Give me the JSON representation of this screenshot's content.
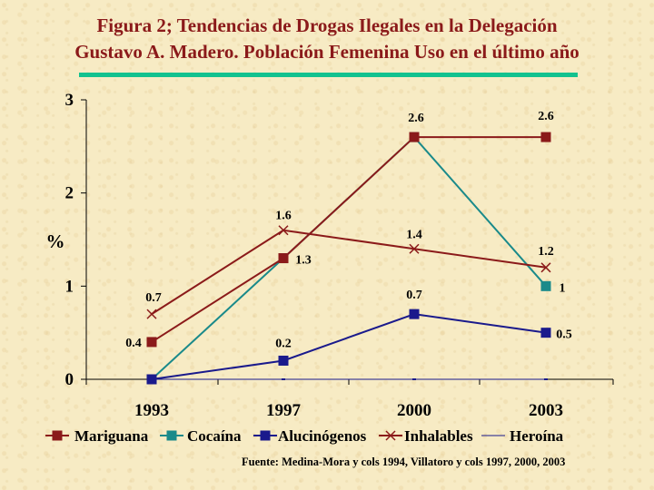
{
  "title_line1": "Figura 2; Tendencias de Drogas Ilegales en  la Delegación",
  "title_line2": "Gustavo A. Madero. Población Femenina Uso en el último año",
  "source": "Fuente: Medina-Mora y cols 1994, Villatoro y cols 1997, 2000, 2003",
  "chart_data": {
    "type": "line",
    "categories": [
      "1993",
      "1997",
      "2000",
      "2003"
    ],
    "ylabel": "%",
    "ylim": [
      0,
      3
    ],
    "yticks": [
      "0",
      "1",
      "2",
      "3"
    ],
    "grid": false,
    "legend_position": "bottom",
    "series": [
      {
        "name": "Mariguana",
        "values": [
          0.4,
          1.3,
          2.6,
          2.6
        ],
        "labels": [
          "0.4",
          "",
          "",
          "2.6"
        ],
        "color": "#8b1a1a",
        "marker": "square"
      },
      {
        "name": "Cocaína",
        "values": [
          0,
          1.3,
          2.6,
          1
        ],
        "labels": [
          "",
          "1.3",
          "2.6",
          "1"
        ],
        "color": "#1a8a8a",
        "marker": "square"
      },
      {
        "name": "Alucinógenos",
        "values": [
          0,
          0.2,
          0.7,
          0.5
        ],
        "labels": [
          "",
          "0.2",
          "0.7",
          "0.5"
        ],
        "color": "#1a1a8c",
        "marker": "square"
      },
      {
        "name": "Inhalables",
        "values": [
          0.7,
          1.6,
          1.4,
          1.2
        ],
        "labels": [
          "0.7",
          "1.6",
          "1.4",
          "1.2"
        ],
        "color": "#8b1a1a",
        "marker": "x"
      },
      {
        "name": "Heroína",
        "values": [
          0,
          0,
          0,
          0
        ],
        "labels": [
          "",
          "",
          "",
          ""
        ],
        "color": "#1a1a8c",
        "marker": "dash"
      }
    ]
  }
}
